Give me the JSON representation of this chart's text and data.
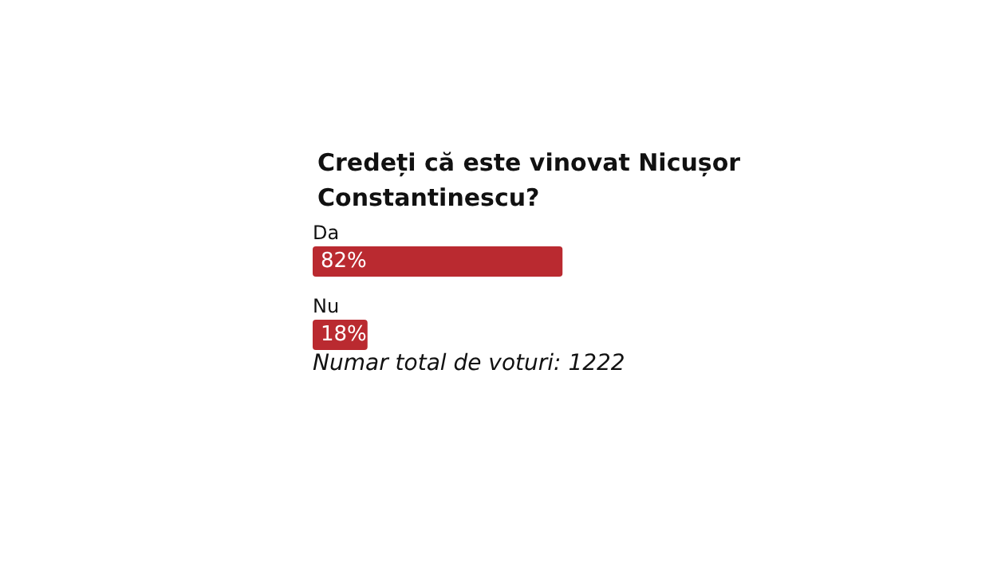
{
  "chart_data": {
    "type": "bar",
    "orientation": "horizontal",
    "title": "Credeți că este vinovat Nicușor Constantinescu?",
    "categories": [
      "Da",
      "Nu"
    ],
    "series": [
      {
        "color": "#ba2a30",
        "values": [
          82,
          18
        ],
        "value_labels": [
          "82%",
          "18%"
        ]
      }
    ],
    "annotations": [
      "Numar total de voturi: 1222"
    ]
  }
}
